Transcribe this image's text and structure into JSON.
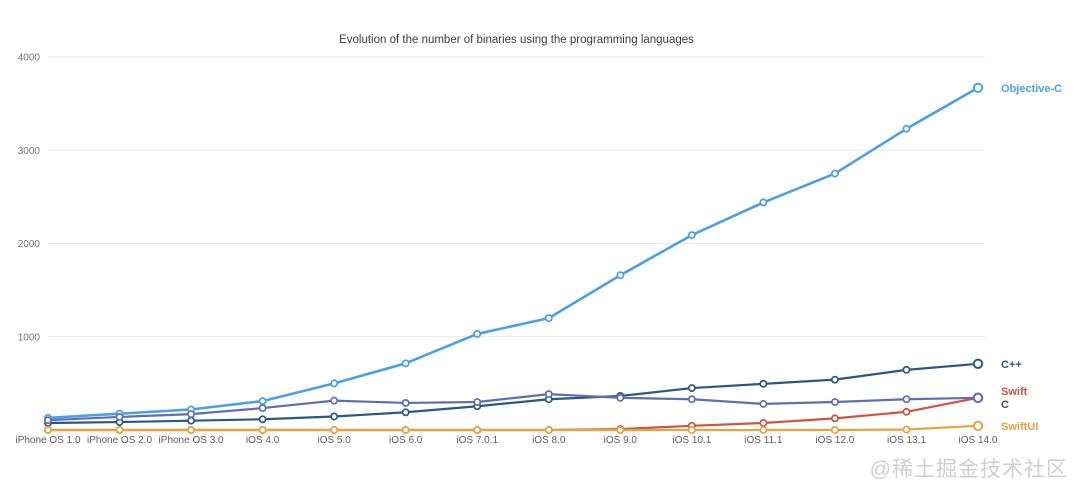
{
  "page": {
    "background": "#ffffff"
  },
  "watermark": {
    "text": "@稀土掘金技术社区"
  },
  "chart_data": {
    "type": "line",
    "title": "Evolution of the number of binaries using the programming languages",
    "categories": [
      "iPhone OS 1.0",
      "iPhone OS 2.0",
      "iPhone OS 3.0",
      "iOS 4.0",
      "iOS 5.0",
      "iOS 6.0",
      "iOS 7.0.1",
      "iOS 8.0",
      "iOS 9.0",
      "iOS 10.1",
      "iOS 11.1",
      "iOS 12.0",
      "iOS 13.1",
      "iOS 14.0"
    ],
    "series": [
      {
        "name": "Objective-C",
        "color": "#4aa0e8",
        "line_width": 2.6,
        "label_dy": 0,
        "values": [
          130,
          175,
          220,
          310,
          500,
          715,
          1030,
          1200,
          1660,
          2090,
          2440,
          2750,
          3230,
          3670
        ]
      },
      {
        "name": "C++",
        "color": "#2a5783",
        "line_width": 2.2,
        "label_dy": 0,
        "values": [
          75,
          85,
          100,
          115,
          145,
          190,
          255,
          330,
          365,
          450,
          495,
          540,
          645,
          710
        ]
      },
      {
        "name": "Swift",
        "color": "#cf5340",
        "line_width": 2.2,
        "label_dy": -7,
        "values": [
          0,
          0,
          0,
          0,
          0,
          0,
          0,
          0,
          10,
          45,
          75,
          125,
          195,
          345
        ]
      },
      {
        "name": "C",
        "color": "#5f6db3",
        "label_color": "#454c57",
        "line_width": 2.2,
        "label_dy": 6,
        "values": [
          105,
          140,
          170,
          235,
          315,
          290,
          300,
          385,
          345,
          330,
          280,
          300,
          330,
          345
        ]
      },
      {
        "name": "SwiftUI",
        "color": "#e8a33d",
        "line_width": 2.2,
        "label_dy": 0,
        "values": [
          0,
          0,
          0,
          0,
          0,
          0,
          0,
          0,
          0,
          0,
          0,
          0,
          5,
          45
        ]
      }
    ],
    "ylim": [
      0,
      4000
    ],
    "yticks": [
      1000,
      2000,
      3000,
      4000
    ],
    "grid": true,
    "legend_position": "right-end-labels",
    "axis": {
      "tick_color": "#757575",
      "category_color": "#5c5c5c",
      "grid_color": "#e7e7e7"
    }
  }
}
